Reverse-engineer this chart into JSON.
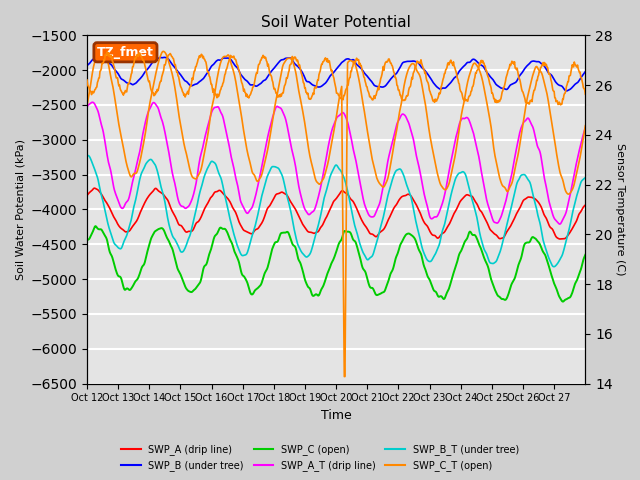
{
  "title": "Soil Water Potential",
  "ylabel_left": "Soil Water Potential (kPa)",
  "ylabel_right": "Sensor Temperature (C)",
  "xlabel": "Time",
  "ylim_left": [
    -6500,
    -1500
  ],
  "ylim_right": [
    14,
    28
  ],
  "yticks_left": [
    -6500,
    -6000,
    -5500,
    -5000,
    -4500,
    -4000,
    -3500,
    -3000,
    -2500,
    -2000,
    -1500
  ],
  "yticks_right": [
    14,
    16,
    18,
    20,
    22,
    24,
    26,
    28
  ],
  "xtick_labels": [
    "Oct 12",
    "Oct 13",
    "Oct 14",
    "Oct 15",
    "Oct 16",
    "Oct 17",
    "Oct 18",
    "Oct 19",
    "Oct 20",
    "Oct 21",
    "Oct 22",
    "Oct 23",
    "Oct 24",
    "Oct 25",
    "Oct 26",
    "Oct 27"
  ],
  "legend_box_label": "TZ_fmet",
  "legend_box_facecolor": "#FF6600",
  "legend_box_edgecolor": "#993300",
  "fig_facecolor": "#D0D0D0",
  "plot_bg_color": "#E4E4E4",
  "grid_color": "white",
  "series": [
    {
      "name": "SWP_A (drip line)",
      "color": "#FF0000",
      "lw": 1.2
    },
    {
      "name": "SWP_B (under tree)",
      "color": "#0000FF",
      "lw": 1.2
    },
    {
      "name": "SWP_C (open)",
      "color": "#00CC00",
      "lw": 1.4
    },
    {
      "name": "SWP_A_T (drip line)",
      "color": "#FF00FF",
      "lw": 1.2
    },
    {
      "name": "SWP_B_T (under tree)",
      "color": "#00CCCC",
      "lw": 1.2
    },
    {
      "name": "SWP_C_T (open)",
      "color": "#FF8800",
      "lw": 1.2
    }
  ]
}
